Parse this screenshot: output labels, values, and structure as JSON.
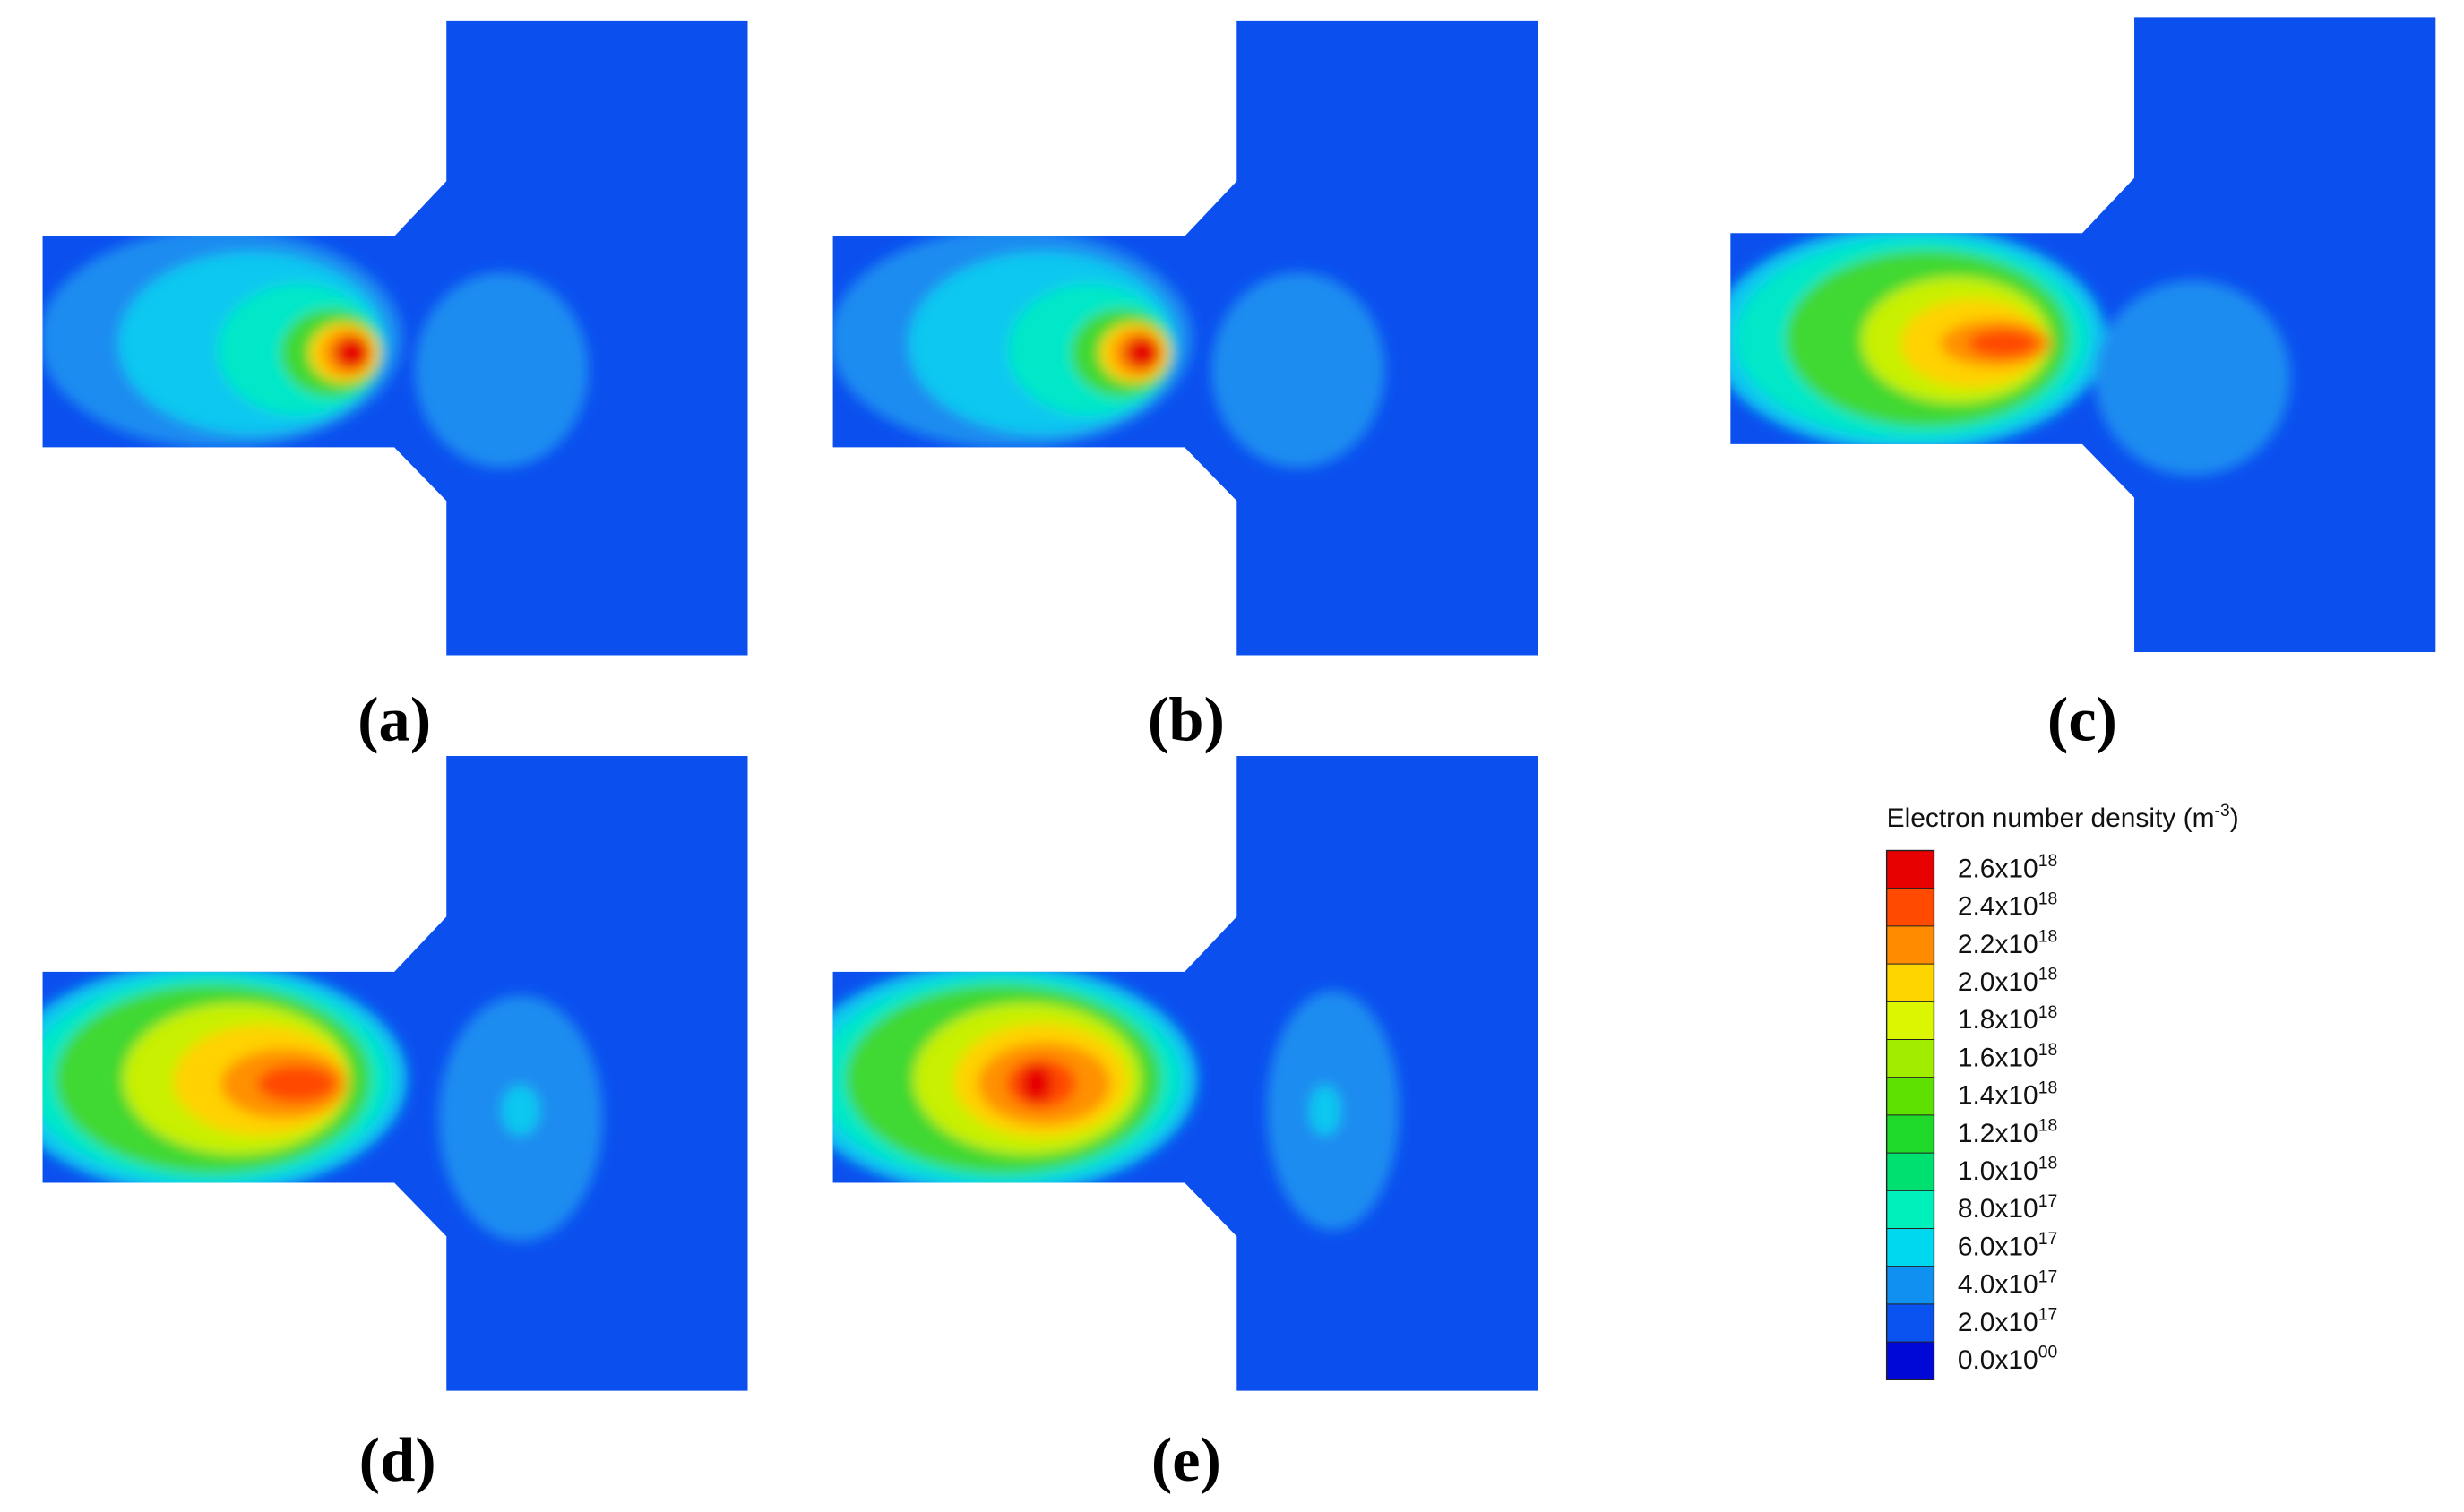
{
  "panels": [
    {
      "label": "(a)"
    },
    {
      "label": "(b)"
    },
    {
      "label": "(c)"
    },
    {
      "label": "(d)"
    },
    {
      "label": "(e)"
    }
  ],
  "legend": {
    "title": {
      "text": "Electron number density (m",
      "superscript": "-3",
      "suffix": ")"
    },
    "levels": [
      {
        "mantissa": "2.6x10",
        "exponent": "18",
        "color": "#e60000"
      },
      {
        "mantissa": "2.4x10",
        "exponent": "18",
        "color": "#ff4a00"
      },
      {
        "mantissa": "2.2x10",
        "exponent": "18",
        "color": "#ff8c00"
      },
      {
        "mantissa": "2.0x10",
        "exponent": "18",
        "color": "#ffd500"
      },
      {
        "mantissa": "1.8x10",
        "exponent": "18",
        "color": "#dcf500"
      },
      {
        "mantissa": "1.6x10",
        "exponent": "18",
        "color": "#a2ec00"
      },
      {
        "mantissa": "1.4x10",
        "exponent": "18",
        "color": "#5ee000"
      },
      {
        "mantissa": "1.2x10",
        "exponent": "18",
        "color": "#1ed82a"
      },
      {
        "mantissa": "1.0x10",
        "exponent": "18",
        "color": "#00e070"
      },
      {
        "mantissa": "8.0x10",
        "exponent": "17",
        "color": "#00f0bc"
      },
      {
        "mantissa": "6.0x10",
        "exponent": "17",
        "color": "#00d8f0"
      },
      {
        "mantissa": "4.0x10",
        "exponent": "17",
        "color": "#1090f0"
      },
      {
        "mantissa": "2.0x10",
        "exponent": "17",
        "color": "#0a52f0"
      },
      {
        "mantissa": "0.0x10",
        "exponent": "00",
        "color": "#0008d8"
      }
    ]
  }
}
